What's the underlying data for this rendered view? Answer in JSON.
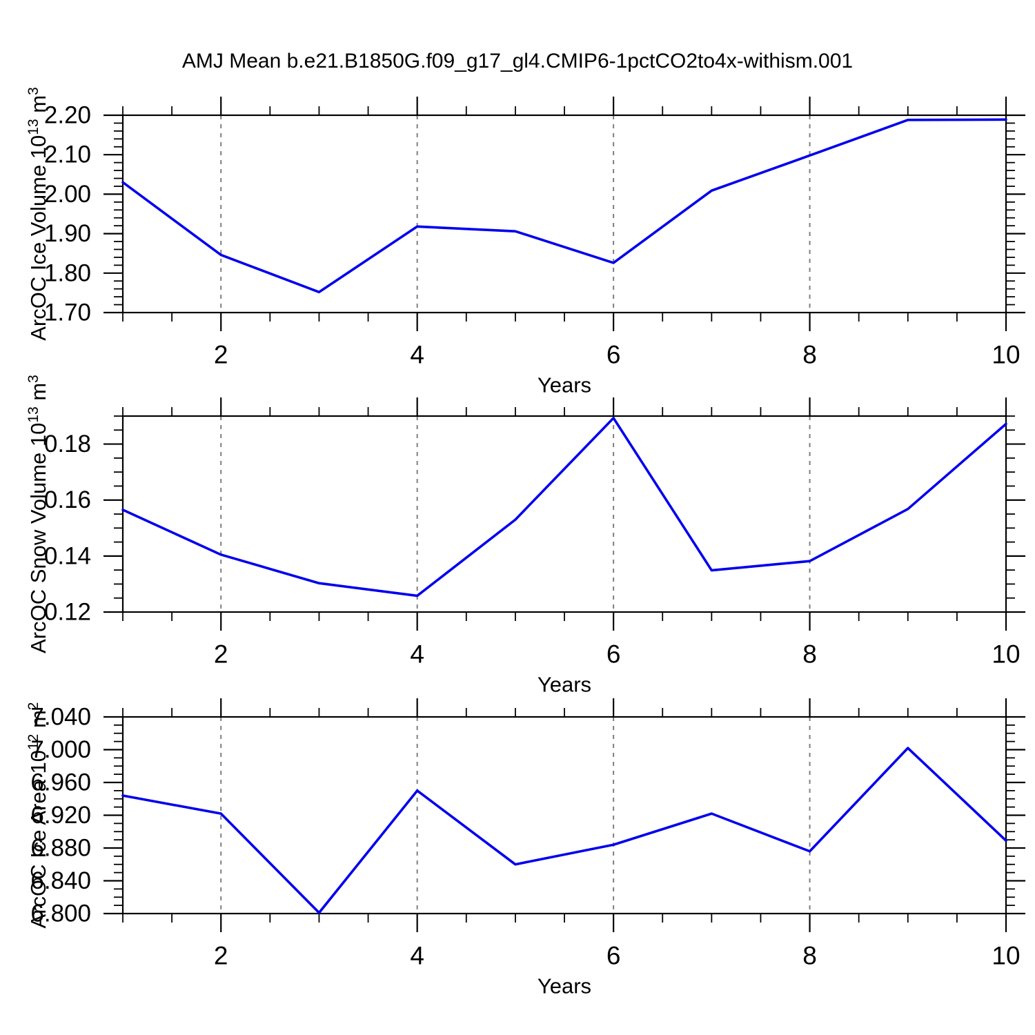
{
  "title": "AMJ Mean b.e21.B1850G.f09_g17_gl4.CMIP6-1pctCO2to4x-withism.001",
  "colors": {
    "line": "#0000EE",
    "grid": "#7F7F7F",
    "axis": "#000000",
    "background": "#FFFFFF"
  },
  "chart_data": [
    {
      "type": "line",
      "panel": "ice-volume",
      "ylabel": "ArcOC Ice Volume 10^13 m^3",
      "ylabel_rich": [
        {
          "t": "ArcOC Ice Volume 10"
        },
        {
          "t": "13",
          "sup": true
        },
        {
          "t": " m"
        },
        {
          "t": "3",
          "sup": true
        }
      ],
      "xlabel": "Years",
      "x": [
        1,
        2,
        3,
        4,
        5,
        6,
        7,
        8,
        9,
        10
      ],
      "values": [
        2.03,
        1.846,
        1.752,
        1.918,
        1.906,
        1.826,
        2.009,
        2.098,
        2.188,
        2.189
      ],
      "xlim": [
        1,
        10
      ],
      "ylim": [
        1.7,
        2.2
      ],
      "yticks_major": [
        1.7,
        1.8,
        1.9,
        2.0,
        2.1,
        2.2
      ],
      "ytick_labels": [
        "1.70",
        "1.80",
        "1.90",
        "2.00",
        "2.10",
        "2.20"
      ],
      "ytick_minor_step": 0.02,
      "xticks_labeled": [
        2,
        4,
        6,
        8,
        10
      ],
      "xtick_labels": [
        "2",
        "4",
        "6",
        "8",
        "10"
      ],
      "xtick_minor_step": 0.5,
      "gridlines_x": [
        2,
        4,
        6,
        8
      ],
      "grid_style": "dashed-vertical"
    },
    {
      "type": "line",
      "panel": "snow-volume",
      "ylabel": "ArcOC Snow Volume 10^13 m^3",
      "ylabel_rich": [
        {
          "t": "ArcOC Snow Volume 10"
        },
        {
          "t": "13",
          "sup": true
        },
        {
          "t": " m"
        },
        {
          "t": "3",
          "sup": true
        }
      ],
      "xlabel": "Years",
      "x": [
        1,
        2,
        3,
        4,
        5,
        6,
        7,
        8,
        9,
        10
      ],
      "values": [
        0.1565,
        0.1405,
        0.1303,
        0.1258,
        0.153,
        0.1893,
        0.1349,
        0.1382,
        0.1568,
        0.1872
      ],
      "xlim": [
        1,
        10
      ],
      "ylim": [
        0.12,
        0.19
      ],
      "yticks_major": [
        0.12,
        0.14,
        0.16,
        0.18
      ],
      "ytick_labels": [
        "0.12",
        "0.14",
        "0.16",
        "0.18"
      ],
      "ytick_minor_step": 0.005,
      "xticks_labeled": [
        2,
        4,
        6,
        8,
        10
      ],
      "xtick_labels": [
        "2",
        "4",
        "6",
        "8",
        "10"
      ],
      "xtick_minor_step": 0.5,
      "gridlines_x": [
        2,
        4,
        6,
        8
      ],
      "grid_style": "dashed-vertical"
    },
    {
      "type": "line",
      "panel": "ice-area",
      "ylabel": "ArcOC Ice Area 10^12 m^2",
      "ylabel_rich": [
        {
          "t": "ArcOC Ice Area 10"
        },
        {
          "t": "12",
          "sup": true
        },
        {
          "t": " m"
        },
        {
          "t": "2",
          "sup": true
        }
      ],
      "xlabel": "Years",
      "x": [
        1,
        2,
        3,
        4,
        5,
        6,
        7,
        8,
        9,
        10
      ],
      "values": [
        6.944,
        6.922,
        6.801,
        6.95,
        6.86,
        6.884,
        6.922,
        6.876,
        7.002,
        6.889
      ],
      "xlim": [
        1,
        10
      ],
      "ylim": [
        6.8,
        7.04
      ],
      "yticks_major": [
        6.8,
        6.84,
        6.88,
        6.92,
        6.96,
        7.0,
        7.04
      ],
      "ytick_labels": [
        "6.800",
        "6.840",
        "6.880",
        "6.920",
        "6.960",
        "7.000",
        "7.040"
      ],
      "ytick_minor_step": 0.01,
      "xticks_labeled": [
        2,
        4,
        6,
        8,
        10
      ],
      "xtick_labels": [
        "2",
        "4",
        "6",
        "8",
        "10"
      ],
      "xtick_minor_step": 0.5,
      "gridlines_x": [
        2,
        4,
        6,
        8
      ],
      "grid_style": "dashed-vertical"
    }
  ]
}
